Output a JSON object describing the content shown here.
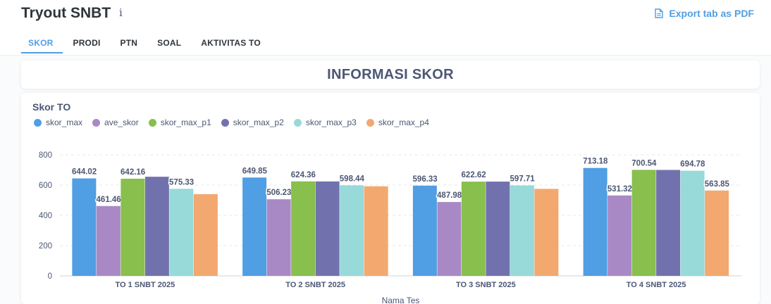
{
  "header": {
    "title": "Tryout SNBT",
    "info_icon": "info-icon",
    "export_label": "Export tab as PDF",
    "export_icon": "document-icon"
  },
  "tabs": [
    {
      "label": "SKOR",
      "active": true
    },
    {
      "label": "PRODI",
      "active": false
    },
    {
      "label": "PTN",
      "active": false
    },
    {
      "label": "SOAL",
      "active": false
    },
    {
      "label": "AKTIVITAS TO",
      "active": false
    }
  ],
  "section_title": "INFORMASI SKOR",
  "chart_data": {
    "type": "bar",
    "title": "Skor TO",
    "xlabel": "Nama Tes",
    "ylabel": "",
    "ylim": [
      0,
      800
    ],
    "yticks": [
      0,
      200,
      400,
      600,
      800
    ],
    "legend_position": "top-left",
    "categories": [
      "TO 1 SNBT 2025",
      "TO 2 SNBT 2025",
      "TO 3 SNBT 2025",
      "TO 4 SNBT 2025"
    ],
    "series": [
      {
        "name": "skor_max",
        "color": "#509ee3",
        "values": [
          644.02,
          649.85,
          596.33,
          713.18
        ],
        "labeled": [
          true,
          true,
          true,
          true
        ]
      },
      {
        "name": "ave_skor",
        "color": "#a989c5",
        "values": [
          461.46,
          506.23,
          487.98,
          531.32
        ],
        "labeled": [
          true,
          true,
          true,
          true
        ]
      },
      {
        "name": "skor_max_p1",
        "color": "#88bf4d",
        "values": [
          642.16,
          624.36,
          622.62,
          700.54
        ],
        "labeled": [
          true,
          true,
          true,
          true
        ]
      },
      {
        "name": "skor_max_p2",
        "color": "#7172ad",
        "values": [
          655,
          624,
          623,
          700
        ],
        "labeled": [
          false,
          false,
          false,
          false
        ]
      },
      {
        "name": "skor_max_p3",
        "color": "#98d9d9",
        "values": [
          575.33,
          598.44,
          597.71,
          694.78
        ],
        "labeled": [
          true,
          true,
          true,
          true
        ]
      },
      {
        "name": "skor_max_p4",
        "color": "#f2a86f",
        "values": [
          540,
          592,
          575,
          563.85
        ],
        "labeled": [
          false,
          false,
          false,
          true
        ]
      }
    ]
  }
}
